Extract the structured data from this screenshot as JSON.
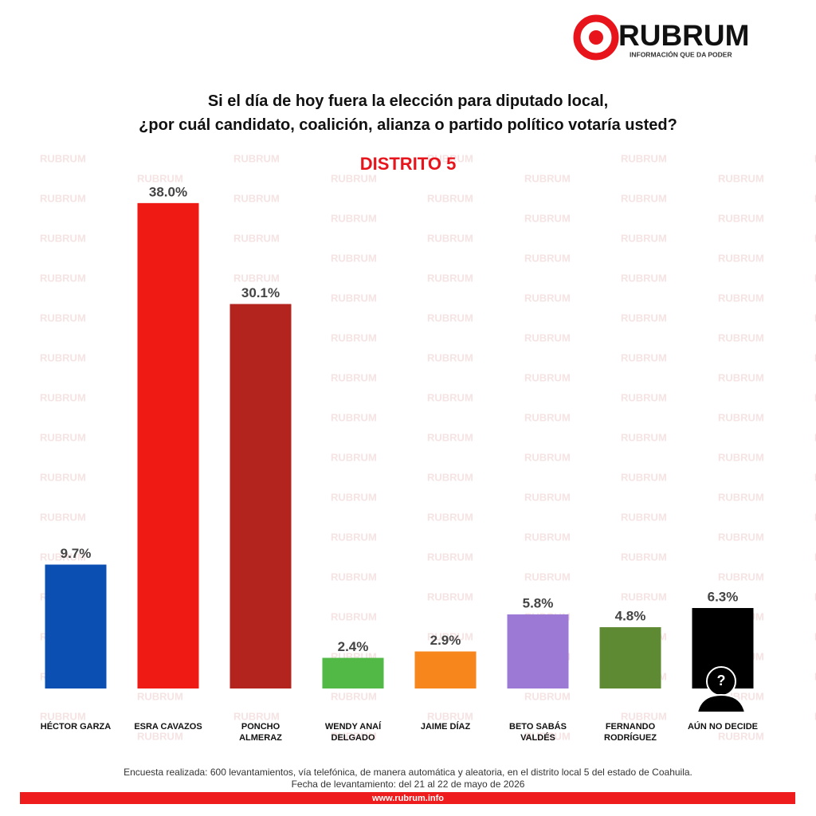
{
  "brand": {
    "name": "RUBRUM",
    "tagline": "INFORMACIÓN QUE DA PODER",
    "watermark": "RUBRUM",
    "url": "www.rubrum.info"
  },
  "chart_data": {
    "type": "bar",
    "title": "Si el día de hoy fuera la elección para diputado local,\n¿por cuál candidato, coalición, alianza o partido político votaría usted?",
    "subtitle": "DISTRITO 5",
    "categories": [
      "HÉCTOR GARZA",
      "ESRA CAVAZOS",
      "PONCHO\nALMERAZ",
      "WENDY ANAÍ\nDELGADO",
      "JAIME DÍAZ",
      "BETO SABÁS\nVALDÉS",
      "FERNANDO\nRODRÍGUEZ",
      "AÚN NO DECIDE"
    ],
    "values": [
      9.7,
      38.0,
      30.1,
      2.4,
      2.9,
      5.8,
      4.8,
      6.3
    ],
    "value_labels": [
      "9.7%",
      "38.0%",
      "30.1%",
      "2.4%",
      "2.9%",
      "5.8%",
      "4.8%",
      "6.3%"
    ],
    "colors": [
      "#0b4fb2",
      "#f01a14",
      "#b3241f",
      "#52b947",
      "#f7861c",
      "#9d79d6",
      "#5f8a34",
      "#000000"
    ],
    "footnote": "Encuesta realizada: 600 levantamientos, vía telefónica, de manera automática y aleatoria, en el distrito local 5 del estado de Coahuila.\nFecha de levantamiento: del 21 al 22 de mayo de 2026"
  }
}
